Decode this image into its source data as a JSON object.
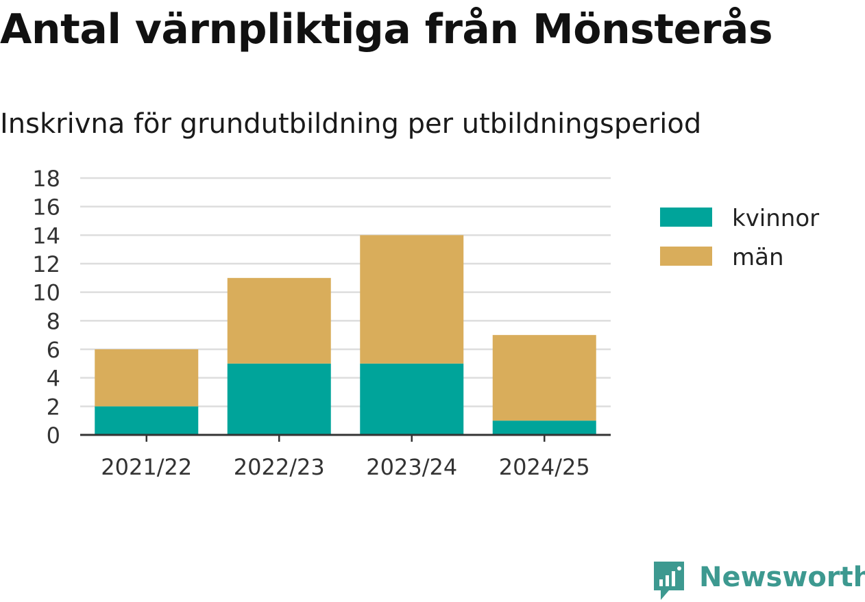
{
  "title": "Antal värnpliktiga från Mönsterås",
  "subtitle": "Inskrivna för grundutbildning per utbildningsperiod",
  "chart_data": {
    "type": "bar",
    "stacked": true,
    "categories": [
      "2021/22",
      "2022/23",
      "2023/24",
      "2024/25"
    ],
    "series": [
      {
        "name": "kvinnor",
        "values": [
          2,
          5,
          5,
          1
        ],
        "color": "#00a49a"
      },
      {
        "name": "män",
        "values": [
          4,
          6,
          9,
          6
        ],
        "color": "#d9ad5b"
      }
    ],
    "ylim": [
      0,
      18
    ],
    "yticks": [
      0,
      2,
      4,
      6,
      8,
      10,
      12,
      14,
      16,
      18
    ],
    "grid": true,
    "legend_position": "right"
  },
  "logo": {
    "text": "Newsworthy",
    "icon": "newsworthy-logo-icon",
    "color": "#3d9990"
  }
}
